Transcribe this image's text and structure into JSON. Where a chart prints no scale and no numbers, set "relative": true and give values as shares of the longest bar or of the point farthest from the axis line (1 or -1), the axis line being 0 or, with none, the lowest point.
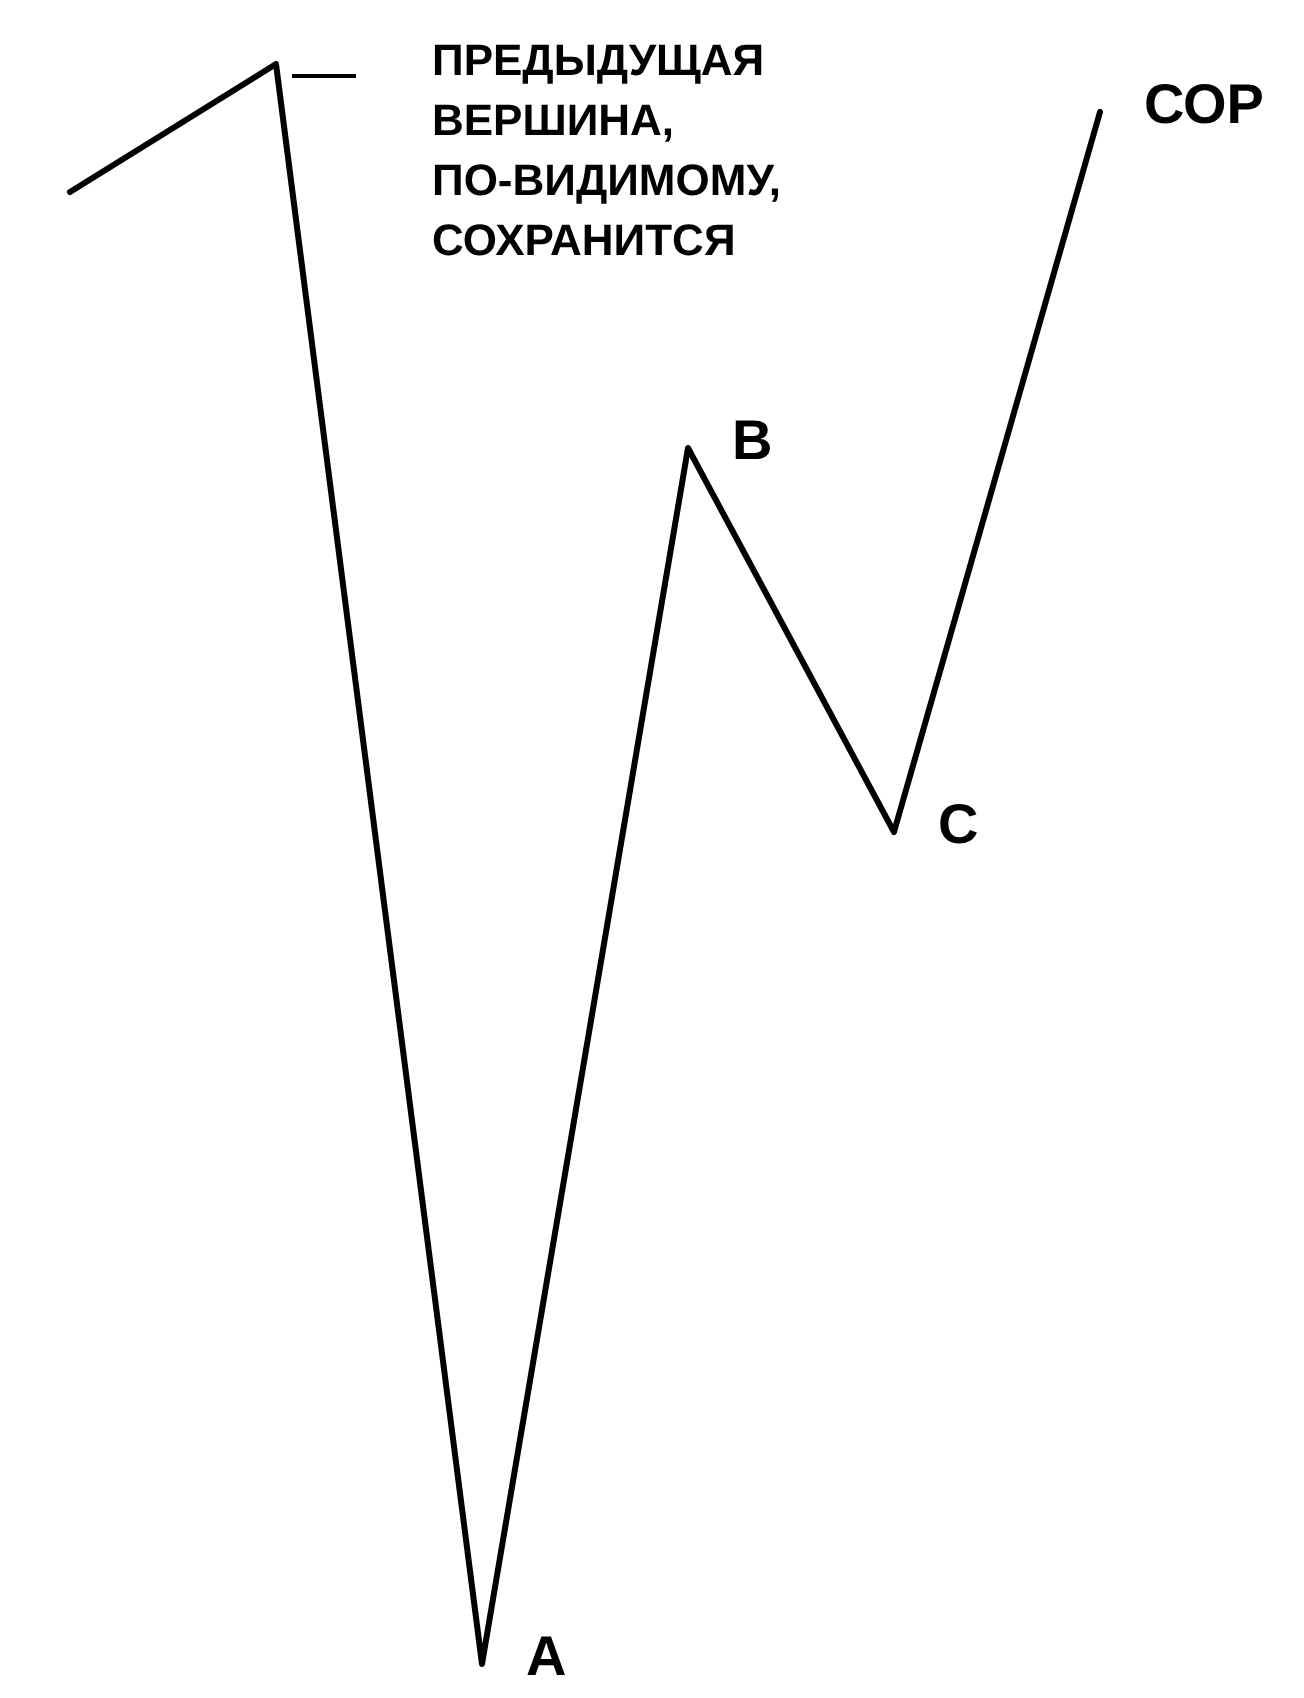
{
  "chart_data": {
    "type": "line",
    "relative": true,
    "categories": [
      null,
      null,
      null,
      null,
      null,
      null
    ],
    "series": [
      {
        "color": "#000000",
        "values": [
          0.92,
          1,
          0,
          0.76,
          0.52,
          0.97
        ]
      }
    ],
    "annotations": [
      "ПРЕДЫДУЩАЯ\nВЕРШИНА,\nПО-ВИДИМОМУ,\nСОХРАНИТСЯ",
      "A",
      "B",
      "C",
      "СОР"
    ],
    "marker": "none",
    "line_style": "solid",
    "grid": false
  }
}
